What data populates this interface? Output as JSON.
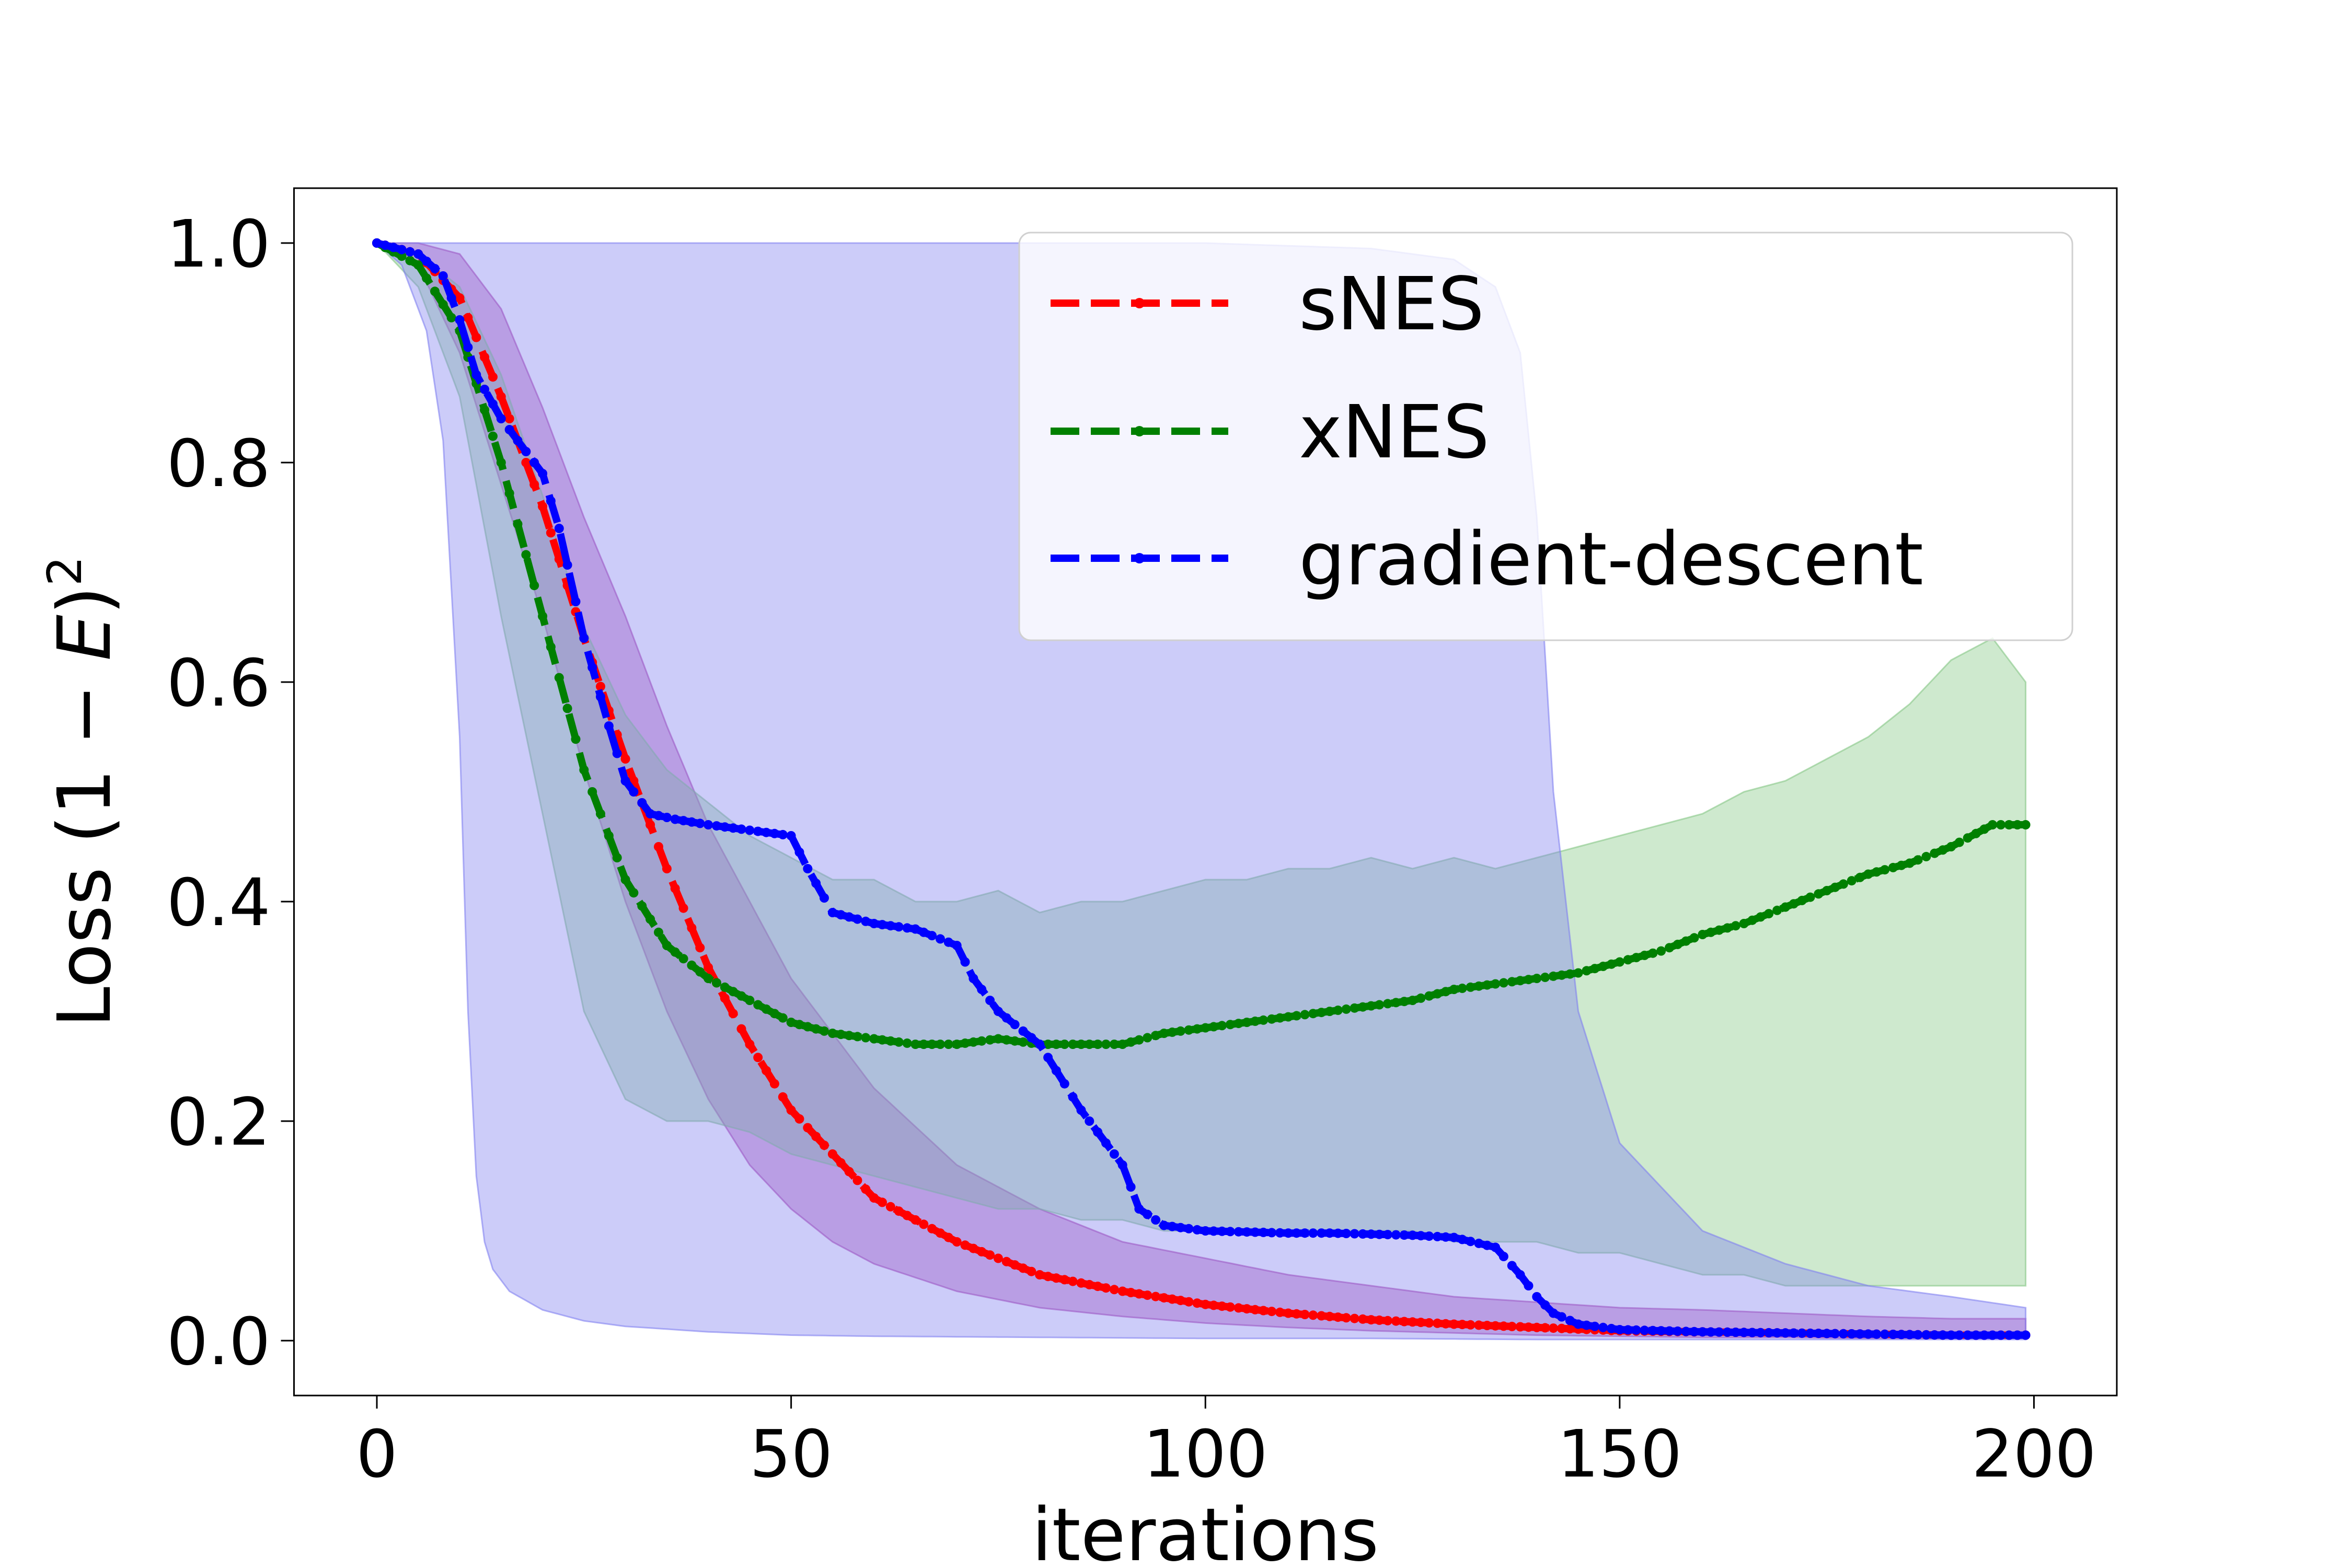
{
  "chart_data": {
    "type": "line",
    "xlabel": "iterations",
    "ylabel": {
      "main": "Loss (1 − ",
      "var": "E",
      "close": ")",
      "sup": "2"
    },
    "xlim": [
      -10,
      210
    ],
    "ylim": [
      -0.05,
      1.05
    ],
    "xticks": [
      0,
      50,
      100,
      150,
      200
    ],
    "yticks": [
      0.0,
      0.2,
      0.4,
      0.6,
      0.8,
      1.0
    ],
    "xtick_labels": [
      "0",
      "50",
      "100",
      "150",
      "200"
    ],
    "ytick_labels": [
      "0.0",
      "0.2",
      "0.4",
      "0.6",
      "0.8",
      "1.0"
    ],
    "grid": false,
    "legend_position": "top-right",
    "series": [
      {
        "name": "sNES",
        "color": "#ff0000",
        "band_color": "#b03fa8",
        "mean": {
          "x": [
            0,
            5,
            10,
            15,
            20,
            25,
            30,
            35,
            40,
            45,
            50,
            55,
            60,
            70,
            80,
            90,
            100,
            110,
            120,
            130,
            140,
            150,
            160,
            170,
            180,
            190,
            199
          ],
          "y": [
            1.0,
            0.99,
            0.95,
            0.86,
            0.76,
            0.64,
            0.53,
            0.43,
            0.34,
            0.27,
            0.21,
            0.17,
            0.13,
            0.09,
            0.06,
            0.045,
            0.033,
            0.025,
            0.019,
            0.015,
            0.012,
            0.009,
            0.008,
            0.007,
            0.006,
            0.005,
            0.005
          ]
        },
        "upper": {
          "x": [
            0,
            5,
            10,
            15,
            20,
            25,
            30,
            35,
            40,
            45,
            50,
            55,
            60,
            70,
            80,
            90,
            100,
            110,
            120,
            130,
            140,
            150,
            160,
            170,
            180,
            190,
            199
          ],
          "y": [
            1.0,
            1.0,
            0.99,
            0.94,
            0.85,
            0.75,
            0.66,
            0.56,
            0.47,
            0.4,
            0.33,
            0.28,
            0.23,
            0.16,
            0.12,
            0.09,
            0.075,
            0.06,
            0.05,
            0.04,
            0.035,
            0.03,
            0.028,
            0.025,
            0.022,
            0.02,
            0.02
          ]
        },
        "lower": {
          "x": [
            0,
            5,
            10,
            15,
            20,
            25,
            30,
            35,
            40,
            45,
            50,
            55,
            60,
            70,
            80,
            90,
            100,
            110,
            120,
            130,
            140,
            150,
            160,
            170,
            180,
            190,
            199
          ],
          "y": [
            1.0,
            0.98,
            0.9,
            0.78,
            0.66,
            0.52,
            0.4,
            0.3,
            0.22,
            0.16,
            0.12,
            0.09,
            0.07,
            0.045,
            0.03,
            0.022,
            0.016,
            0.012,
            0.009,
            0.007,
            0.005,
            0.004,
            0.003,
            0.003,
            0.002,
            0.002,
            0.002
          ]
        }
      },
      {
        "name": "xNES",
        "color": "#008000",
        "band_color": "#85c785",
        "mean": {
          "x": [
            0,
            5,
            10,
            15,
            20,
            25,
            30,
            35,
            40,
            45,
            50,
            55,
            60,
            65,
            70,
            75,
            80,
            85,
            90,
            95,
            100,
            105,
            110,
            115,
            120,
            125,
            130,
            135,
            140,
            145,
            150,
            155,
            160,
            165,
            170,
            175,
            180,
            185,
            190,
            195,
            199
          ],
          "y": [
            1.0,
            0.98,
            0.92,
            0.8,
            0.66,
            0.52,
            0.42,
            0.36,
            0.33,
            0.31,
            0.29,
            0.28,
            0.275,
            0.27,
            0.27,
            0.275,
            0.27,
            0.27,
            0.27,
            0.28,
            0.285,
            0.29,
            0.295,
            0.3,
            0.305,
            0.31,
            0.32,
            0.325,
            0.33,
            0.335,
            0.345,
            0.355,
            0.37,
            0.38,
            0.395,
            0.41,
            0.425,
            0.435,
            0.45,
            0.47,
            0.47
          ]
        },
        "upper": {
          "x": [
            0,
            5,
            10,
            15,
            20,
            25,
            30,
            35,
            40,
            45,
            50,
            55,
            60,
            65,
            70,
            75,
            80,
            85,
            90,
            95,
            100,
            105,
            110,
            115,
            120,
            125,
            130,
            135,
            140,
            145,
            150,
            155,
            160,
            165,
            170,
            175,
            180,
            185,
            190,
            195,
            199
          ],
          "y": [
            1.0,
            0.99,
            0.96,
            0.88,
            0.77,
            0.65,
            0.57,
            0.52,
            0.49,
            0.46,
            0.44,
            0.42,
            0.42,
            0.4,
            0.4,
            0.41,
            0.39,
            0.4,
            0.4,
            0.41,
            0.42,
            0.42,
            0.43,
            0.43,
            0.44,
            0.43,
            0.44,
            0.43,
            0.44,
            0.45,
            0.46,
            0.47,
            0.48,
            0.5,
            0.51,
            0.53,
            0.55,
            0.58,
            0.62,
            0.64,
            0.6
          ]
        },
        "lower": {
          "x": [
            0,
            5,
            10,
            15,
            20,
            25,
            30,
            35,
            40,
            45,
            50,
            55,
            60,
            65,
            70,
            75,
            80,
            85,
            90,
            95,
            100,
            105,
            110,
            115,
            120,
            125,
            130,
            135,
            140,
            145,
            150,
            155,
            160,
            165,
            170,
            175,
            180,
            185,
            190,
            195,
            199
          ],
          "y": [
            1.0,
            0.96,
            0.86,
            0.66,
            0.48,
            0.3,
            0.22,
            0.2,
            0.2,
            0.19,
            0.17,
            0.16,
            0.15,
            0.14,
            0.13,
            0.12,
            0.12,
            0.11,
            0.11,
            0.1,
            0.1,
            0.1,
            0.1,
            0.1,
            0.1,
            0.1,
            0.09,
            0.09,
            0.09,
            0.08,
            0.08,
            0.07,
            0.06,
            0.06,
            0.05,
            0.05,
            0.05,
            0.05,
            0.05,
            0.05,
            0.05
          ]
        }
      },
      {
        "name": "gradient-descent",
        "color": "#0000ff",
        "band_color": "#8080f0",
        "mean": {
          "x": [
            0,
            5,
            8,
            10,
            12,
            15,
            18,
            20,
            22,
            25,
            28,
            30,
            33,
            36,
            40,
            45,
            50,
            52,
            55,
            60,
            65,
            70,
            72,
            75,
            80,
            85,
            88,
            90,
            92,
            95,
            100,
            105,
            110,
            115,
            120,
            125,
            130,
            135,
            138,
            140,
            142,
            145,
            150,
            160,
            170,
            180,
            190,
            199
          ],
          "y": [
            1.0,
            0.99,
            0.97,
            0.93,
            0.88,
            0.84,
            0.81,
            0.79,
            0.74,
            0.64,
            0.56,
            0.51,
            0.48,
            0.475,
            0.47,
            0.465,
            0.46,
            0.43,
            0.39,
            0.38,
            0.375,
            0.36,
            0.33,
            0.3,
            0.27,
            0.21,
            0.18,
            0.16,
            0.12,
            0.105,
            0.1,
            0.099,
            0.098,
            0.098,
            0.097,
            0.096,
            0.094,
            0.085,
            0.06,
            0.04,
            0.025,
            0.015,
            0.01,
            0.008,
            0.007,
            0.006,
            0.005,
            0.005
          ]
        },
        "upper": {
          "x": [
            0,
            20,
            40,
            60,
            80,
            100,
            120,
            130,
            135,
            138,
            140,
            142,
            145,
            150,
            160,
            170,
            180,
            190,
            199
          ],
          "y": [
            1.0,
            1.0,
            1.0,
            1.0,
            1.0,
            1.0,
            0.995,
            0.985,
            0.96,
            0.9,
            0.75,
            0.5,
            0.3,
            0.18,
            0.1,
            0.07,
            0.05,
            0.04,
            0.03
          ]
        },
        "lower": {
          "x": [
            0,
            3,
            6,
            8,
            10,
            11,
            12,
            13,
            14,
            16,
            20,
            25,
            30,
            40,
            50,
            60,
            80,
            100,
            120,
            140,
            160,
            180,
            199
          ],
          "y": [
            1.0,
            0.98,
            0.92,
            0.82,
            0.55,
            0.3,
            0.15,
            0.09,
            0.065,
            0.045,
            0.028,
            0.018,
            0.013,
            0.008,
            0.005,
            0.004,
            0.003,
            0.002,
            0.002,
            0.001,
            0.001,
            0.001,
            0.001
          ]
        }
      }
    ]
  }
}
